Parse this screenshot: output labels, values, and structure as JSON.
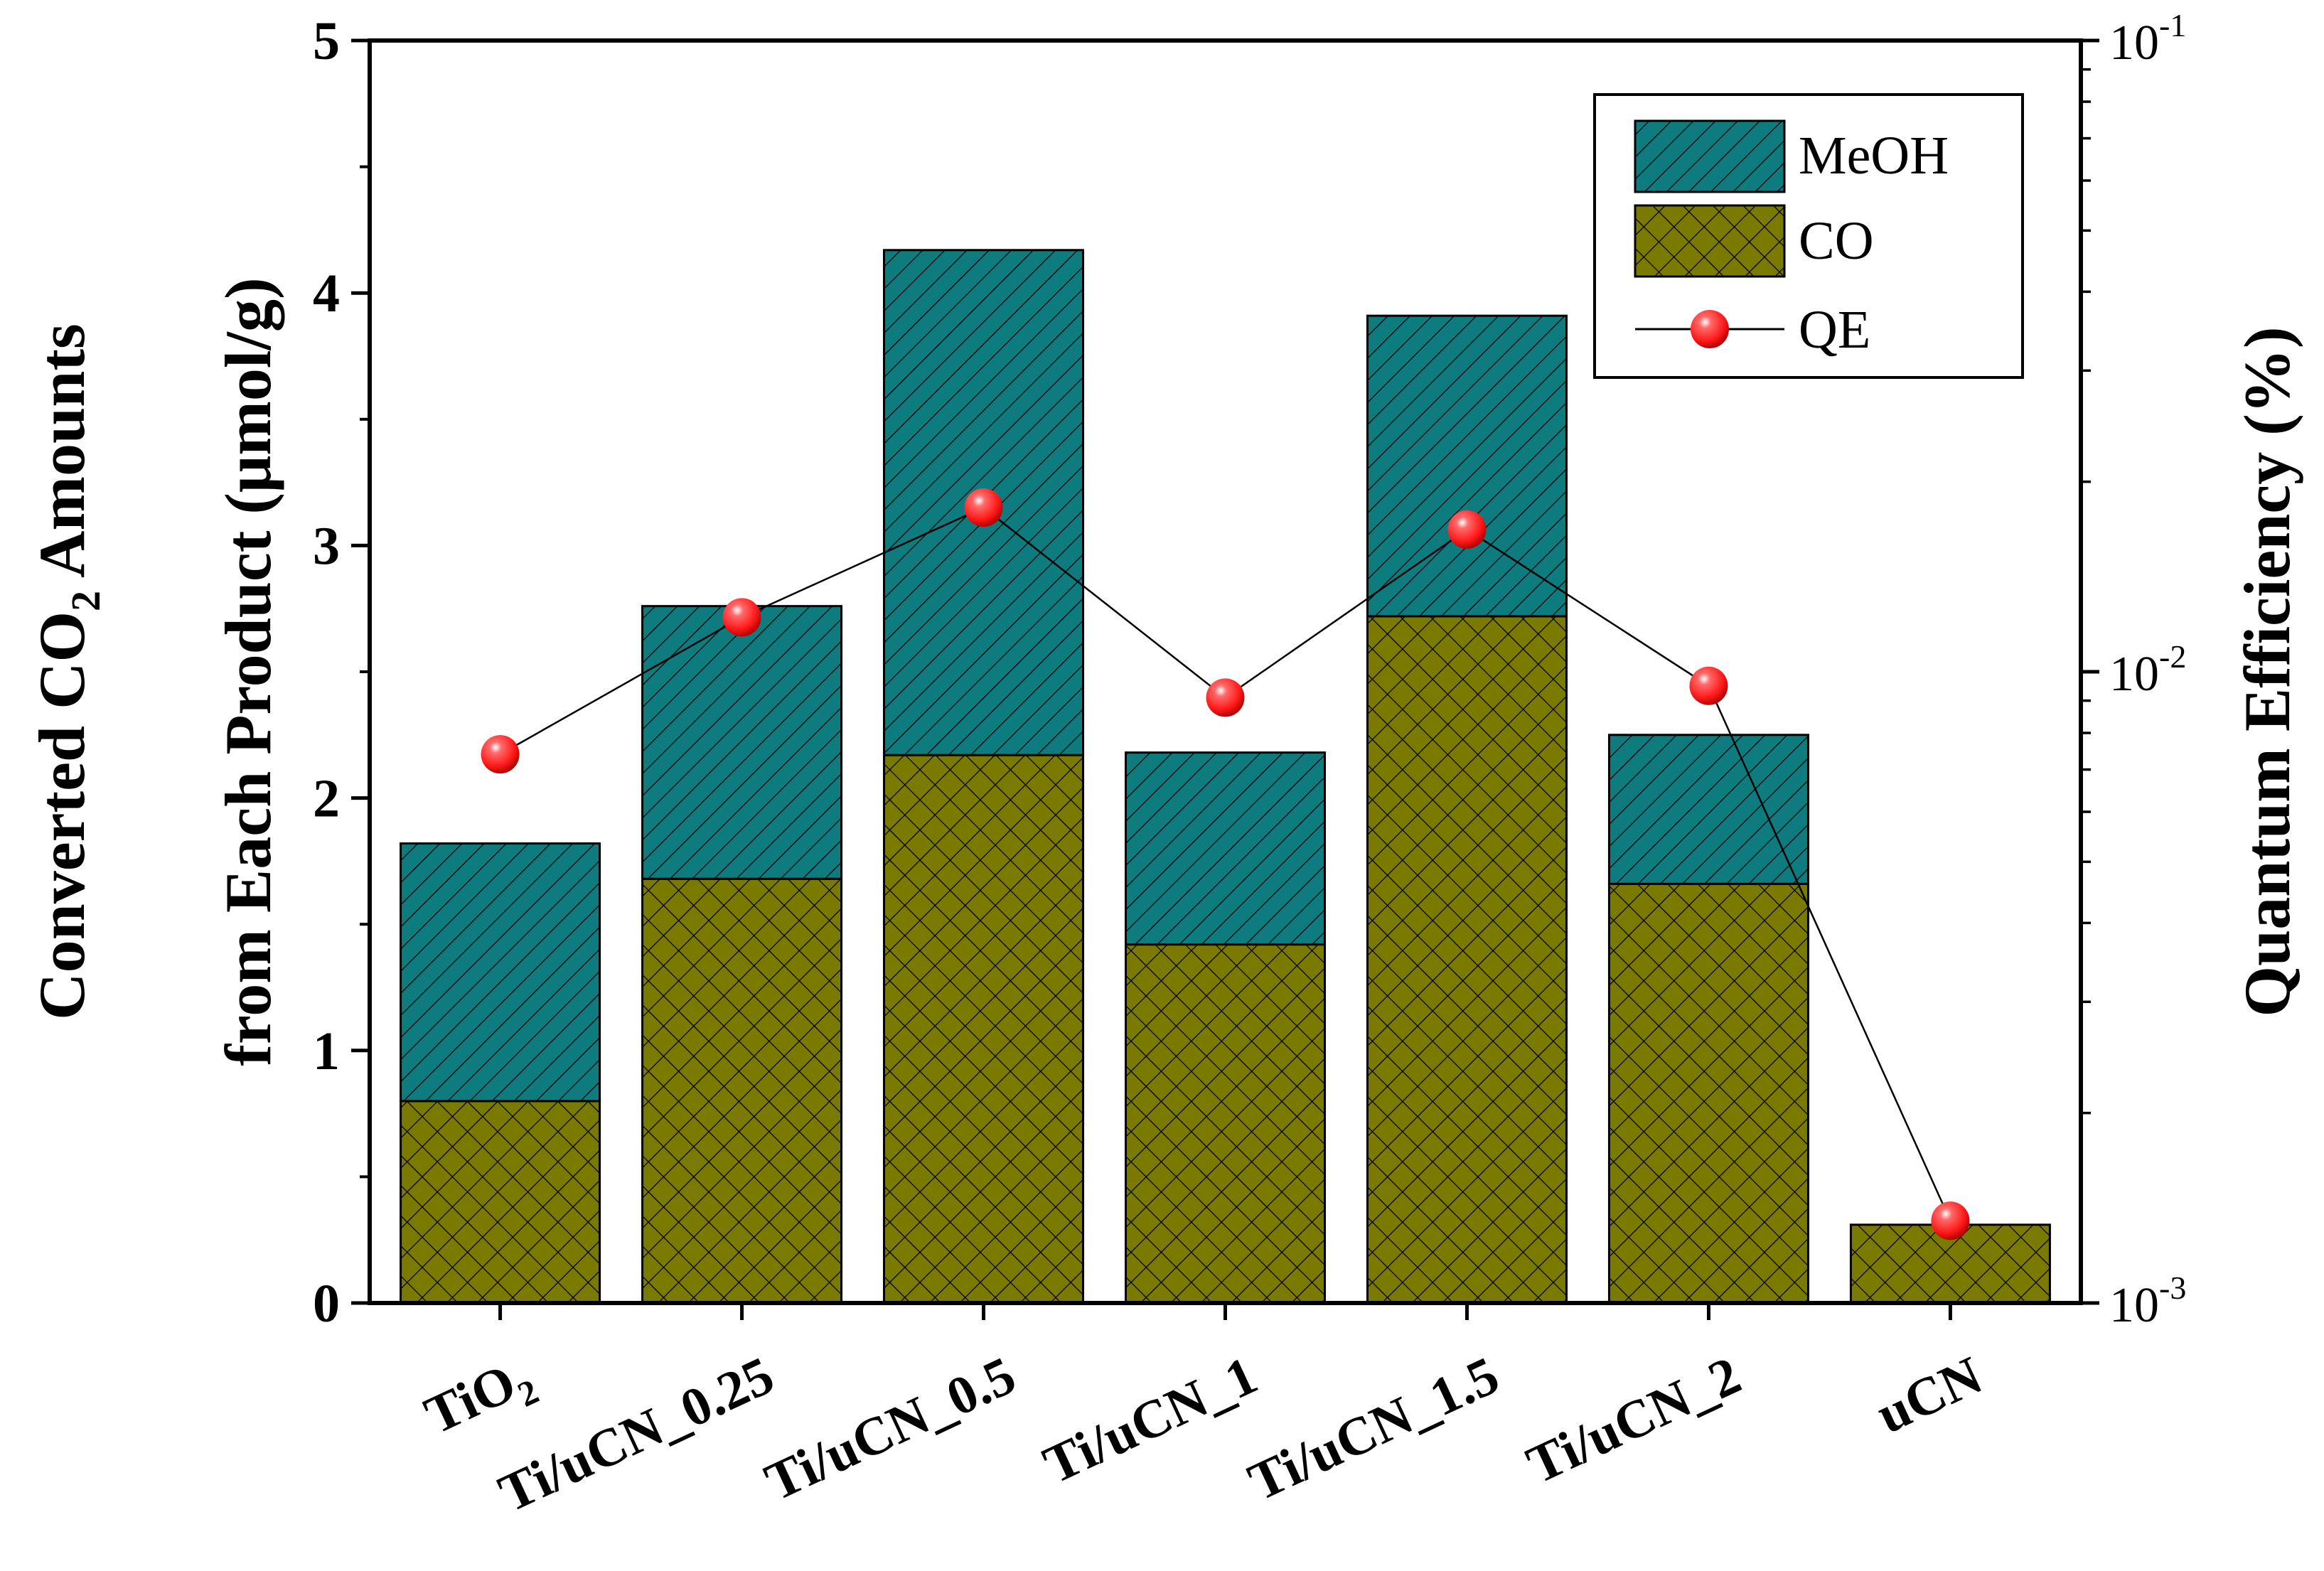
{
  "chart_data": {
    "type": "bar",
    "stacked": true,
    "categories": [
      "TiO2",
      "Ti/uCN_0.25",
      "Ti/uCN_0.5",
      "Ti/uCN_1",
      "Ti/uCN_1.5",
      "Ti/uCN_2",
      "uCN"
    ],
    "category_labels": [
      {
        "main": "TiO",
        "sub": "2"
      },
      {
        "main": "Ti/uCN_0.25",
        "sub": ""
      },
      {
        "main": "Ti/uCN_0.5",
        "sub": ""
      },
      {
        "main": "Ti/uCN_1",
        "sub": ""
      },
      {
        "main": "Ti/uCN_1.5",
        "sub": ""
      },
      {
        "main": "Ti/uCN_2",
        "sub": ""
      },
      {
        "main": "uCN",
        "sub": ""
      }
    ],
    "series": [
      {
        "name": "CO",
        "values": [
          0.8,
          1.68,
          2.17,
          1.42,
          2.72,
          1.66,
          0.31
        ],
        "color": "#7a7a00",
        "pattern": "crosshatch",
        "axis": "left"
      },
      {
        "name": "MeOH",
        "values": [
          1.02,
          1.08,
          2.0,
          0.76,
          1.19,
          0.59,
          0.0
        ],
        "color": "#0e7b7e",
        "pattern": "diagonal",
        "axis": "left"
      },
      {
        "name": "QE",
        "values": [
          0.0074,
          0.0122,
          0.0182,
          0.0091,
          0.0168,
          0.0095,
          0.00135
        ],
        "color": "#ff1a1a",
        "marker": "sphere",
        "line": true,
        "axis": "right"
      }
    ],
    "ylabel_line1": {
      "pre": "Converted CO",
      "sub": "2",
      "post": " Amounts"
    },
    "ylabel_line2": "from Each Product (μmol/g)",
    "y2label": "Quantum Efficiency (%)",
    "ylim": [
      0,
      5
    ],
    "yticks": [
      0,
      1,
      2,
      3,
      4,
      5
    ],
    "y2lim": [
      0.001,
      0.1
    ],
    "y2scale": "log",
    "y2ticks": [
      {
        "value": 0.001,
        "base": "10",
        "exp": "-3"
      },
      {
        "value": 0.01,
        "base": "10",
        "exp": "-2"
      },
      {
        "value": 0.1,
        "base": "10",
        "exp": "-1"
      }
    ],
    "legend": {
      "position": "top-right",
      "order": [
        "MeOH",
        "CO",
        "QE"
      ]
    },
    "colors": {
      "co": "#7a7a00",
      "meoh": "#0e7b7e",
      "qe": "#ff1a1a",
      "axis": "#000000"
    }
  }
}
